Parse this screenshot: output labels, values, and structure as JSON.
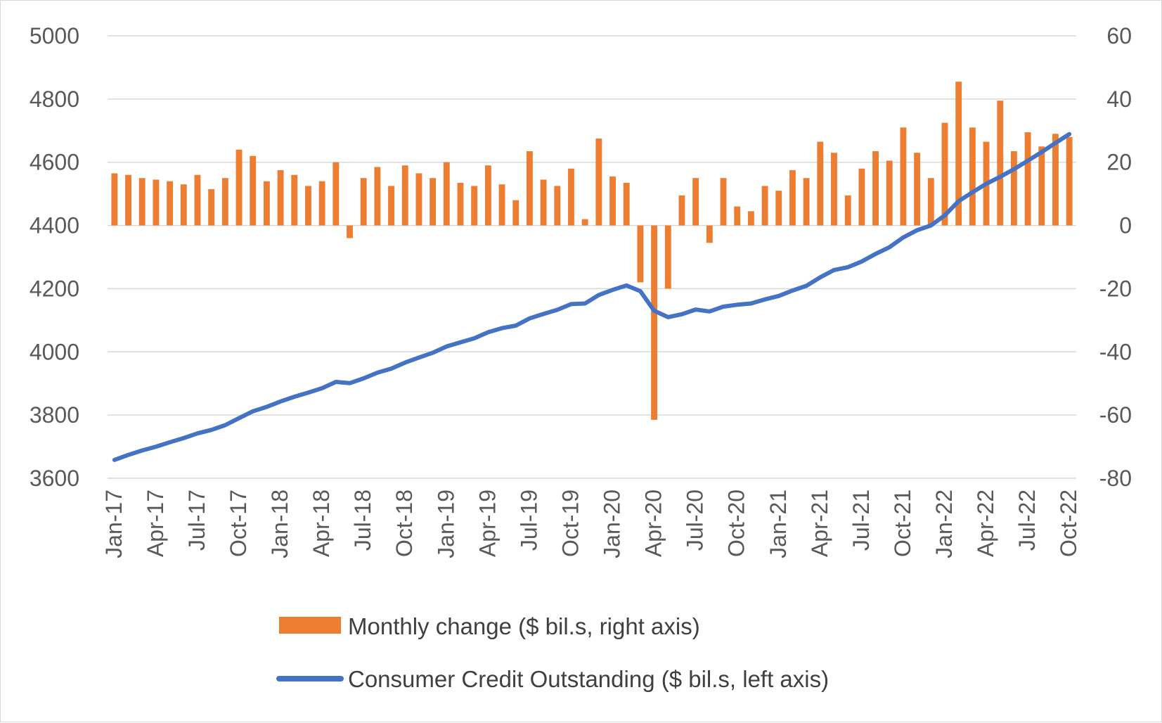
{
  "chart_data": {
    "type": "bar+line",
    "title": "",
    "x_tick_labels": [
      "Jan-17",
      "Apr-17",
      "Jul-17",
      "Oct-17",
      "Jan-18",
      "Apr-18",
      "Jul-18",
      "Oct-18",
      "Jan-19",
      "Apr-19",
      "Jul-19",
      "Oct-19",
      "Jan-20",
      "Apr-20",
      "Jul-20",
      "Oct-20",
      "Jan-21",
      "Apr-21",
      "Jul-21",
      "Oct-21",
      "Jan-22",
      "Apr-22",
      "Jul-22",
      "Oct-22"
    ],
    "left_axis": {
      "min": 3600,
      "max": 5000,
      "step": 200,
      "tick_labels": [
        "5000",
        "4800",
        "4600",
        "4400",
        "4200",
        "4000",
        "3800",
        "3600"
      ]
    },
    "right_axis": {
      "min": -80,
      "max": 60,
      "step": 20,
      "tick_labels": [
        "60",
        "40",
        "20",
        "0",
        "-20",
        "-40",
        "-60",
        "-80"
      ]
    },
    "grid": "horizontal",
    "legend_position": "bottom",
    "series": [
      {
        "name": "Monthly change ($ bil.s, right axis)",
        "type": "bar",
        "axis": "right",
        "color": "#ED7D31",
        "values": [
          16.5,
          16.0,
          15.0,
          14.5,
          14.0,
          13.0,
          16.0,
          11.5,
          15.0,
          24.0,
          22.0,
          14.0,
          17.5,
          16.0,
          12.5,
          14.0,
          20.0,
          -4.0,
          15.0,
          18.5,
          12.5,
          19.0,
          16.5,
          15.0,
          20.0,
          13.5,
          12.5,
          19.0,
          13.0,
          8.0,
          23.5,
          14.5,
          12.5,
          18.0,
          2.0,
          27.5,
          15.5,
          13.5,
          -18.0,
          -61.5,
          -20.0,
          9.5,
          15.0,
          -5.5,
          15.0,
          6.0,
          4.5,
          12.5,
          11.0,
          17.5,
          15.0,
          26.5,
          23.0,
          9.5,
          18.0,
          23.5,
          20.5,
          31.0,
          23.0,
          15.0,
          32.5,
          45.5,
          31.0,
          26.5,
          39.5,
          23.5,
          29.5,
          25.0,
          29.0,
          28.0
        ]
      },
      {
        "name": "Consumer Credit Outstanding ($ bil.s, left axis)",
        "type": "line",
        "axis": "left",
        "color": "#4472C4",
        "values": [
          3658,
          3674,
          3688,
          3700,
          3714,
          3727,
          3742,
          3753,
          3768,
          3790,
          3812,
          3826,
          3843,
          3858,
          3871,
          3885,
          3905,
          3901,
          3916,
          3934,
          3947,
          3966,
          3982,
          3997,
          4017,
          4030,
          4043,
          4062,
          4075,
          4083,
          4106,
          4120,
          4133,
          4151,
          4153,
          4180,
          4196,
          4210,
          4192,
          4130,
          4110,
          4119,
          4134,
          4128,
          4143,
          4149,
          4153,
          4166,
          4177,
          4194,
          4209,
          4236,
          4259,
          4268,
          4286,
          4310,
          4331,
          4362,
          4385,
          4400,
          4432,
          4477,
          4505,
          4532,
          4554,
          4578,
          4605,
          4632,
          4661,
          4689
        ]
      }
    ]
  }
}
